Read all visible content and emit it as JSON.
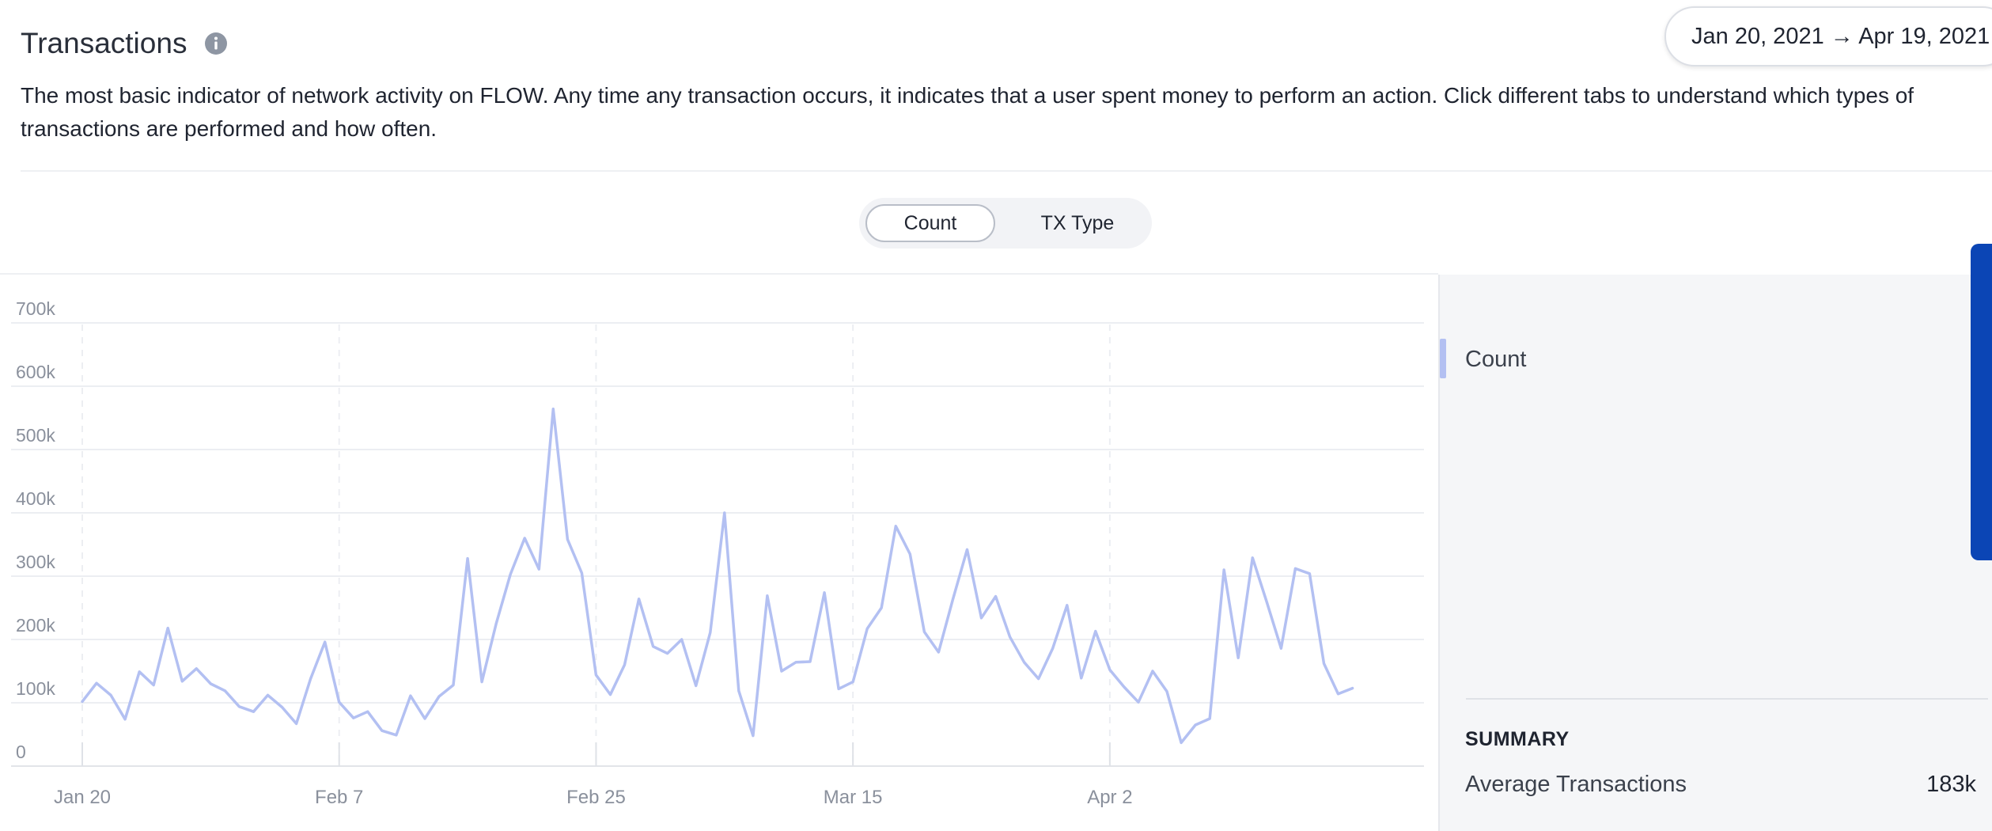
{
  "header": {
    "title": "Transactions",
    "date_range": "Jan 20, 2021 → Apr 19, 2021",
    "description": "The most basic indicator of network activity on FLOW. Any time any transaction occurs, it indicates that a user spent money to perform an action. Click different tabs to understand which types of transactions are performed and how often."
  },
  "tabs": [
    {
      "label": "Count",
      "active": true
    },
    {
      "label": "TX Type",
      "active": false
    }
  ],
  "legend": {
    "label": "Count",
    "color": "#b3c0f2"
  },
  "summary": {
    "title": "SUMMARY",
    "label": "Average Transactions",
    "value": "183k"
  },
  "colors": {
    "line": "#b3c0f2",
    "accent": "#0b45b5",
    "grid": "#eceef2",
    "tick": "#8a909c"
  },
  "icons": [
    "info-icon"
  ],
  "chart_data": {
    "type": "line",
    "x_start": "2021-01-20",
    "x_ticks": [
      "Jan 20",
      "Feb 7",
      "Feb 25",
      "Mar 15",
      "Apr 2"
    ],
    "y_ticks": [
      "0",
      "100k",
      "200k",
      "300k",
      "400k",
      "500k",
      "600k",
      "700k"
    ],
    "ylim": [
      0,
      700000
    ],
    "grid": true,
    "series": [
      {
        "name": "Count",
        "values": [
          102000,
          131000,
          112000,
          74000,
          149000,
          128000,
          218000,
          134000,
          154000,
          130000,
          119000,
          94000,
          86000,
          112000,
          93000,
          67000,
          138000,
          196000,
          101000,
          76000,
          86000,
          56000,
          49000,
          111000,
          75000,
          110000,
          128000,
          328000,
          133000,
          225000,
          303000,
          360000,
          311000,
          564000,
          358000,
          305000,
          144000,
          113000,
          160000,
          264000,
          189000,
          178000,
          200000,
          127000,
          211000,
          400000,
          119000,
          48000,
          269000,
          150000,
          164000,
          165000,
          274000,
          122000,
          133000,
          217000,
          250000,
          379000,
          335000,
          212000,
          180000,
          263000,
          342000,
          234000,
          268000,
          204000,
          164000,
          138000,
          186000,
          254000,
          139000,
          213000,
          152000,
          125000,
          101000,
          150000,
          118000,
          37000,
          65000,
          75000,
          310000,
          171000,
          329000,
          259000,
          186000,
          312000,
          304000,
          162000,
          114000,
          123000
        ]
      }
    ]
  }
}
